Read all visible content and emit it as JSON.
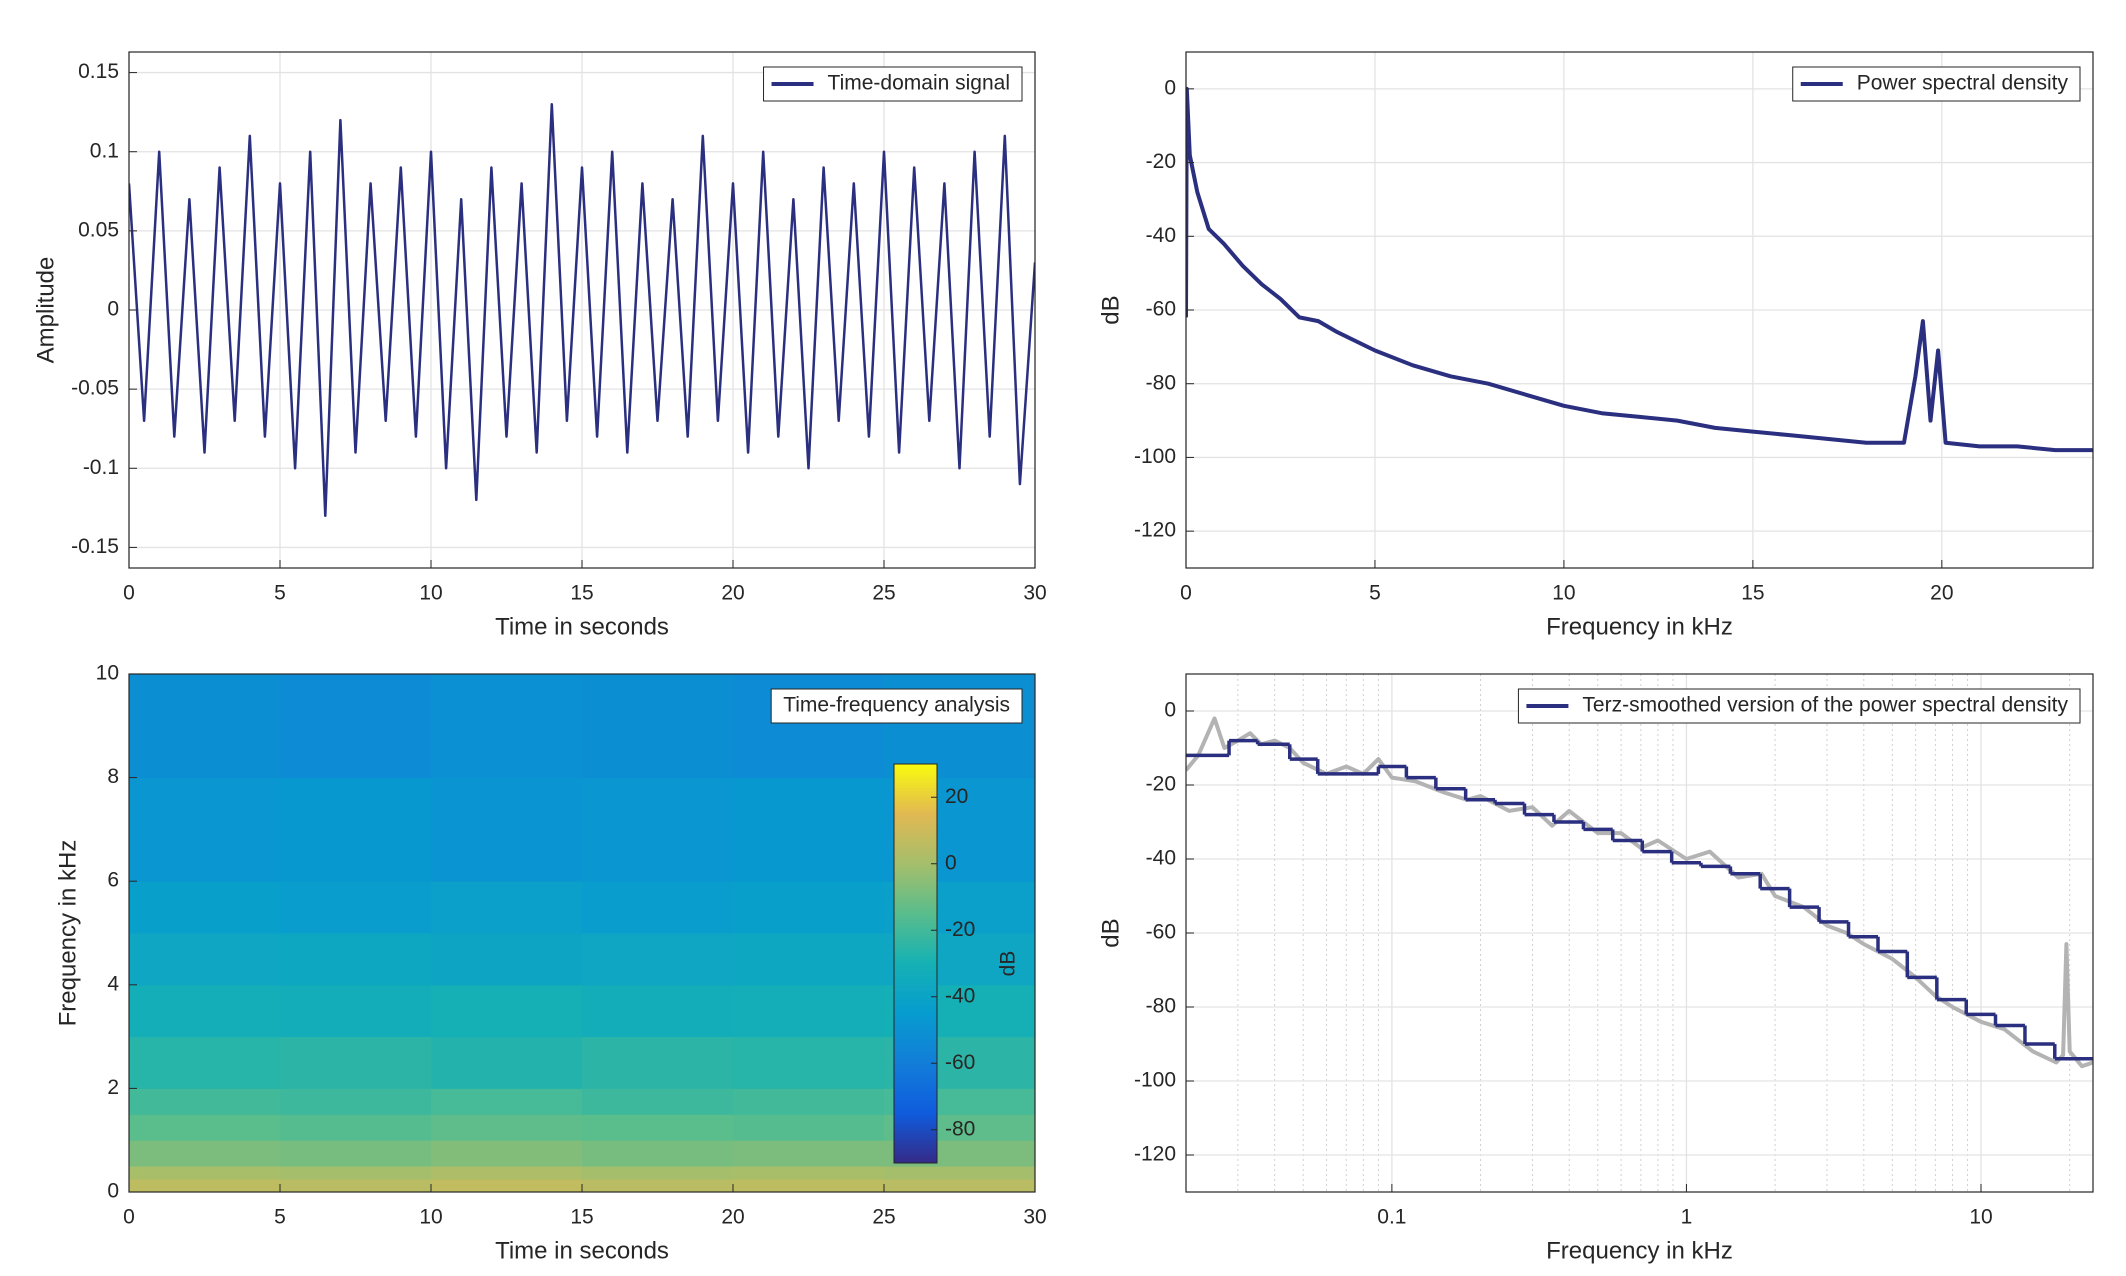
{
  "chart_data": [
    {
      "type": "line",
      "xlabel": "Time in seconds",
      "ylabel": "Amplitude",
      "xlim": [
        0,
        30
      ],
      "ylim": [
        -0.163,
        0.163
      ],
      "xticks": [
        0,
        5,
        10,
        15,
        20,
        25,
        30
      ],
      "yticks": [
        -0.15,
        -0.1,
        -0.05,
        0,
        0.05,
        0.1,
        0.15
      ],
      "grid": true,
      "legend": "top-right",
      "x": [
        0,
        0.5,
        1,
        1.5,
        2,
        2.5,
        3,
        3.5,
        4,
        4.5,
        5,
        5.5,
        6,
        6.5,
        7,
        7.5,
        8,
        8.5,
        9,
        9.5,
        10,
        10.5,
        11,
        11.5,
        12,
        12.5,
        13,
        13.5,
        14,
        14.5,
        15,
        15.5,
        16,
        16.5,
        17,
        17.5,
        18,
        18.5,
        19,
        19.5,
        20,
        20.5,
        21,
        21.5,
        22,
        22.5,
        23,
        23.5,
        24,
        24.5,
        25,
        25.5,
        26,
        26.5,
        27,
        27.5,
        28,
        28.5,
        29,
        29.5,
        30
      ],
      "series": [
        {
          "name": "Time-domain signal",
          "color": "#2b2f7f",
          "values": [
            0.08,
            -0.07,
            0.1,
            -0.08,
            0.07,
            -0.09,
            0.09,
            -0.07,
            0.11,
            -0.08,
            0.08,
            -0.1,
            0.1,
            -0.13,
            0.12,
            -0.09,
            0.08,
            -0.07,
            0.09,
            -0.08,
            0.1,
            -0.1,
            0.07,
            -0.12,
            0.09,
            -0.08,
            0.08,
            -0.09,
            0.13,
            -0.07,
            0.09,
            -0.08,
            0.1,
            -0.09,
            0.08,
            -0.07,
            0.07,
            -0.08,
            0.11,
            -0.07,
            0.08,
            -0.09,
            0.1,
            -0.08,
            0.07,
            -0.1,
            0.09,
            -0.07,
            0.08,
            -0.08,
            0.1,
            -0.09,
            0.09,
            -0.07,
            0.08,
            -0.1,
            0.1,
            -0.08,
            0.11,
            -0.11,
            0.03
          ]
        }
      ]
    },
    {
      "type": "line",
      "xlabel": "Frequency in kHz",
      "ylabel": "dB",
      "xlim": [
        0,
        24
      ],
      "ylim": [
        -130,
        10
      ],
      "xticks": [
        0,
        5,
        10,
        15,
        20
      ],
      "yticks": [
        -120,
        -100,
        -80,
        -60,
        -40,
        -20,
        0
      ],
      "grid": true,
      "legend": "top-right",
      "x": [
        0,
        0.02,
        0.1,
        0.3,
        0.6,
        1,
        1.5,
        2,
        2.5,
        3,
        3.5,
        4,
        5,
        6,
        7,
        8,
        9,
        10,
        11,
        12,
        13,
        14,
        15,
        16,
        17,
        18,
        19,
        19.3,
        19.5,
        19.7,
        19.9,
        20.1,
        21,
        22,
        23,
        24
      ],
      "series": [
        {
          "name": "Power spectral density",
          "color": "#2b2f7f",
          "values": [
            -62,
            0,
            -18,
            -28,
            -38,
            -42,
            -48,
            -53,
            -57,
            -62,
            -63,
            -66,
            -71,
            -75,
            -78,
            -80,
            -83,
            -86,
            -88,
            -89,
            -90,
            -92,
            -93,
            -94,
            -95,
            -96,
            -96,
            -78,
            -63,
            -90,
            -71,
            -96,
            -97,
            -97,
            -98,
            -98
          ]
        }
      ]
    },
    {
      "type": "heatmap",
      "xlabel": "Time in seconds",
      "ylabel": "Frequency in kHz",
      "name": "Time-frequency analysis",
      "xlim": [
        0,
        30
      ],
      "ylim": [
        0,
        10
      ],
      "xticks": [
        0,
        5,
        10,
        15,
        20,
        25,
        30
      ],
      "yticks": [
        0,
        2,
        4,
        6,
        8,
        10
      ],
      "grid": false,
      "x_bins": [
        0,
        5,
        10,
        15,
        20,
        25,
        30
      ],
      "y_bins": [
        0,
        0.25,
        0.5,
        1,
        1.5,
        2,
        3,
        4,
        5,
        6,
        8,
        10
      ],
      "z": [
        [
          6,
          5,
          7,
          5,
          6,
          5
        ],
        [
          1,
          0,
          2,
          0,
          1,
          0
        ],
        [
          -8,
          -9,
          -7,
          -9,
          -8,
          -8
        ],
        [
          -15,
          -16,
          -14,
          -15,
          -16,
          -14
        ],
        [
          -20,
          -21,
          -19,
          -21,
          -20,
          -19
        ],
        [
          -26,
          -25,
          -27,
          -25,
          -26,
          -25
        ],
        [
          -32,
          -33,
          -31,
          -33,
          -32,
          -31
        ],
        [
          -38,
          -37,
          -39,
          -38,
          -37,
          -38
        ],
        [
          -43,
          -44,
          -42,
          -44,
          -43,
          -42
        ],
        [
          -48,
          -47,
          -49,
          -48,
          -47,
          -48
        ],
        [
          -52,
          -53,
          -51,
          -52,
          -53,
          -52
        ]
      ],
      "clim": [
        -90,
        30
      ],
      "colorbar_ticks": [
        -80,
        -60,
        -40,
        -20,
        0,
        20
      ],
      "colorbar_label": "dB",
      "colormap": "parula"
    },
    {
      "type": "line",
      "xlabel": "Frequency in kHz",
      "ylabel": "dB",
      "xscale": "log",
      "xlim": [
        0.02,
        24
      ],
      "ylim": [
        -130,
        10
      ],
      "xticks": [
        0.1,
        1,
        10
      ],
      "xminorticks": [
        0.02,
        0.03,
        0.04,
        0.05,
        0.06,
        0.07,
        0.08,
        0.09,
        0.2,
        0.3,
        0.4,
        0.5,
        0.6,
        0.7,
        0.8,
        0.9,
        2,
        3,
        4,
        5,
        6,
        7,
        8,
        9,
        20
      ],
      "yticks": [
        -120,
        -100,
        -80,
        -60,
        -40,
        -20,
        0
      ],
      "grid": true,
      "legend": "top-right",
      "series": [
        {
          "color": "#b3b3b3",
          "x": [
            0.02,
            0.022,
            0.025,
            0.027,
            0.03,
            0.033,
            0.036,
            0.04,
            0.045,
            0.05,
            0.06,
            0.07,
            0.08,
            0.09,
            0.1,
            0.12,
            0.15,
            0.18,
            0.2,
            0.25,
            0.3,
            0.35,
            0.4,
            0.5,
            0.6,
            0.7,
            0.8,
            1,
            1.2,
            1.5,
            1.8,
            2,
            2.5,
            3,
            3.5,
            4,
            5,
            6,
            7,
            8,
            10,
            12,
            15,
            18,
            19,
            19.5,
            20,
            22,
            24
          ],
          "values": [
            -16,
            -12,
            -2,
            -10,
            -8,
            -6,
            -9,
            -8,
            -10,
            -14,
            -17,
            -15,
            -17,
            -13,
            -18,
            -19,
            -22,
            -24,
            -23,
            -27,
            -26,
            -31,
            -27,
            -33,
            -33,
            -37,
            -35,
            -40,
            -38,
            -45,
            -44,
            -50,
            -53,
            -58,
            -60,
            -63,
            -67,
            -72,
            -77,
            -80,
            -84,
            -86,
            -92,
            -95,
            -93,
            -63,
            -92,
            -96,
            -95
          ]
        },
        {
          "name": "Terz-smoothed version of the power spectral density",
          "color": "#2b2f7f",
          "step": true,
          "x": [
            0.02,
            0.028,
            0.035,
            0.045,
            0.056,
            0.071,
            0.09,
            0.112,
            0.141,
            0.178,
            0.224,
            0.282,
            0.355,
            0.447,
            0.562,
            0.708,
            0.891,
            1.12,
            1.41,
            1.78,
            2.24,
            2.82,
            3.55,
            4.47,
            5.62,
            7.08,
            8.91,
            11.2,
            14.1,
            17.8
          ],
          "values": [
            -12,
            -8,
            -9,
            -13,
            -17,
            -17,
            -15,
            -18,
            -21,
            -24,
            -25,
            -28,
            -30,
            -32,
            -35,
            -38,
            -41,
            -42,
            -44,
            -48,
            -53,
            -57,
            -61,
            -65,
            -72,
            -78,
            -82,
            -85,
            -90,
            -94
          ]
        }
      ]
    }
  ]
}
